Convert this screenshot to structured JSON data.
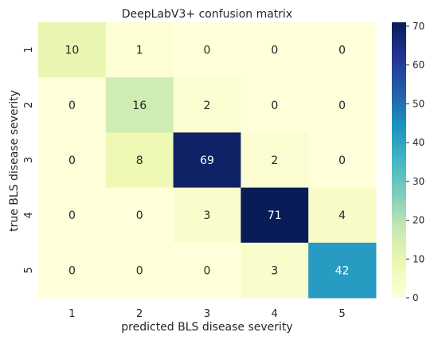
{
  "chart_data": {
    "type": "heatmap",
    "title": "DeepLabV3+ confusion matrix",
    "xlabel": "predicted BLS disease severity",
    "ylabel": "true BLS disease severity",
    "x_categories": [
      "1",
      "2",
      "3",
      "4",
      "5"
    ],
    "y_categories": [
      "1",
      "2",
      "3",
      "4",
      "5"
    ],
    "values": [
      [
        10,
        1,
        0,
        0,
        0
      ],
      [
        0,
        16,
        2,
        0,
        0
      ],
      [
        0,
        8,
        69,
        2,
        0
      ],
      [
        0,
        0,
        3,
        71,
        4
      ],
      [
        0,
        0,
        0,
        3,
        42
      ]
    ],
    "colormap": "YlGnBu",
    "color_range": [
      0,
      71
    ],
    "colorbar_ticks": [
      0,
      10,
      20,
      30,
      40,
      50,
      60,
      70
    ],
    "legend": "colorbar-right",
    "grid": false
  }
}
